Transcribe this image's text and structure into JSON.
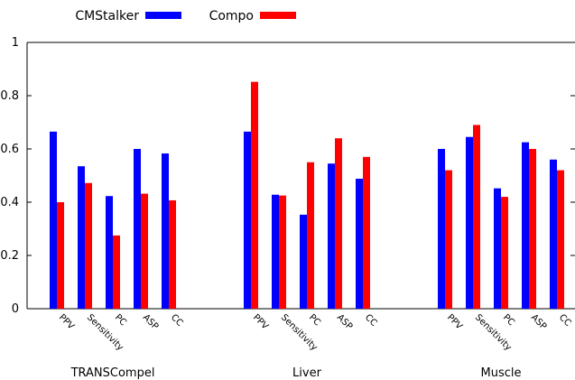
{
  "chart_data": {
    "type": "bar",
    "groups": [
      "TRANSCompel",
      "Liver",
      "Muscle"
    ],
    "categories": [
      "PPV",
      "Sensitivity",
      "PC",
      "ASP",
      "CC"
    ],
    "series": [
      {
        "name": "CMStalker",
        "color": "#0000ff",
        "values": [
          [
            0.665,
            0.535,
            0.423,
            0.6,
            0.583
          ],
          [
            0.665,
            0.428,
            0.353,
            0.545,
            0.488
          ],
          [
            0.6,
            0.645,
            0.452,
            0.625,
            0.56
          ]
        ]
      },
      {
        "name": "Compo",
        "color": "#ff0000",
        "values": [
          [
            0.4,
            0.472,
            0.275,
            0.432,
            0.407
          ],
          [
            0.852,
            0.425,
            0.55,
            0.64,
            0.57
          ],
          [
            0.52,
            0.69,
            0.42,
            0.6,
            0.52
          ]
        ]
      }
    ],
    "yticks": [
      "0",
      "0.2",
      "0.4",
      "0.6",
      "0.8",
      "1"
    ],
    "ylim": [
      0,
      1
    ],
    "legend_position": "top-left",
    "grid": false
  }
}
